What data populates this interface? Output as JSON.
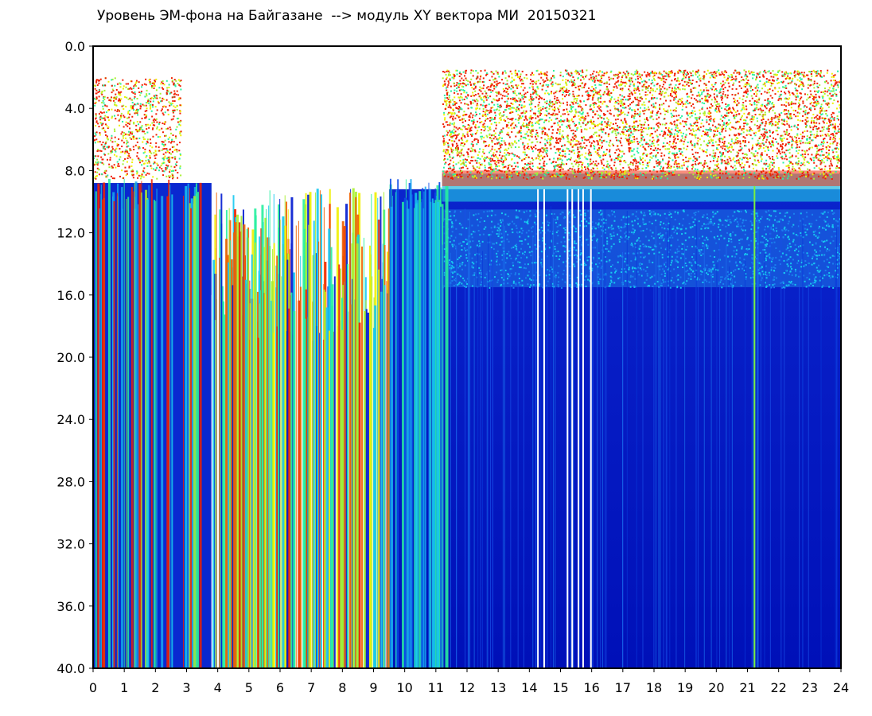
{
  "chart_data": {
    "type": "heatmap",
    "title": "Уровень ЭМ-фона на Байгазане  --> модуль XY вектора МИ  20150321",
    "xlabel": "",
    "ylabel": "",
    "xlim": [
      0,
      24
    ],
    "ylim": [
      40.0,
      0.0
    ],
    "x_ticks": [
      "0",
      "1",
      "2",
      "3",
      "4",
      "5",
      "6",
      "7",
      "8",
      "9",
      "10",
      "11",
      "12",
      "13",
      "14",
      "15",
      "16",
      "17",
      "18",
      "19",
      "20",
      "21",
      "22",
      "23",
      "24"
    ],
    "y_ticks": [
      "0.0",
      "4.0",
      "8.0",
      "12.0",
      "16.0",
      "20.0",
      "24.0",
      "28.0",
      "32.0",
      "36.0",
      "40.0"
    ],
    "colorscale": [
      "#0018d0",
      "#0a4ae8",
      "#17c8f0",
      "#28f0a0",
      "#a8f030",
      "#f0f000",
      "#f02000",
      "#ffffff"
    ],
    "regions": [
      {
        "x": [
          0.0,
          3.8
        ],
        "description": "low-level blue background with frequent cyan/green/red vertical streaks"
      },
      {
        "x": [
          3.8,
          9.5
        ],
        "description": "intense broadband activity, red/yellow/green streaks, white saturated gaps"
      },
      {
        "x": [
          9.5,
          11.2
        ],
        "description": "transition with cyan/green streaks"
      },
      {
        "x": [
          11.2,
          24.0
        ],
        "description": "deep blue background, cyan band near 12–15, red/green noise band 1–9"
      }
    ],
    "grid": false,
    "legend": "none"
  }
}
